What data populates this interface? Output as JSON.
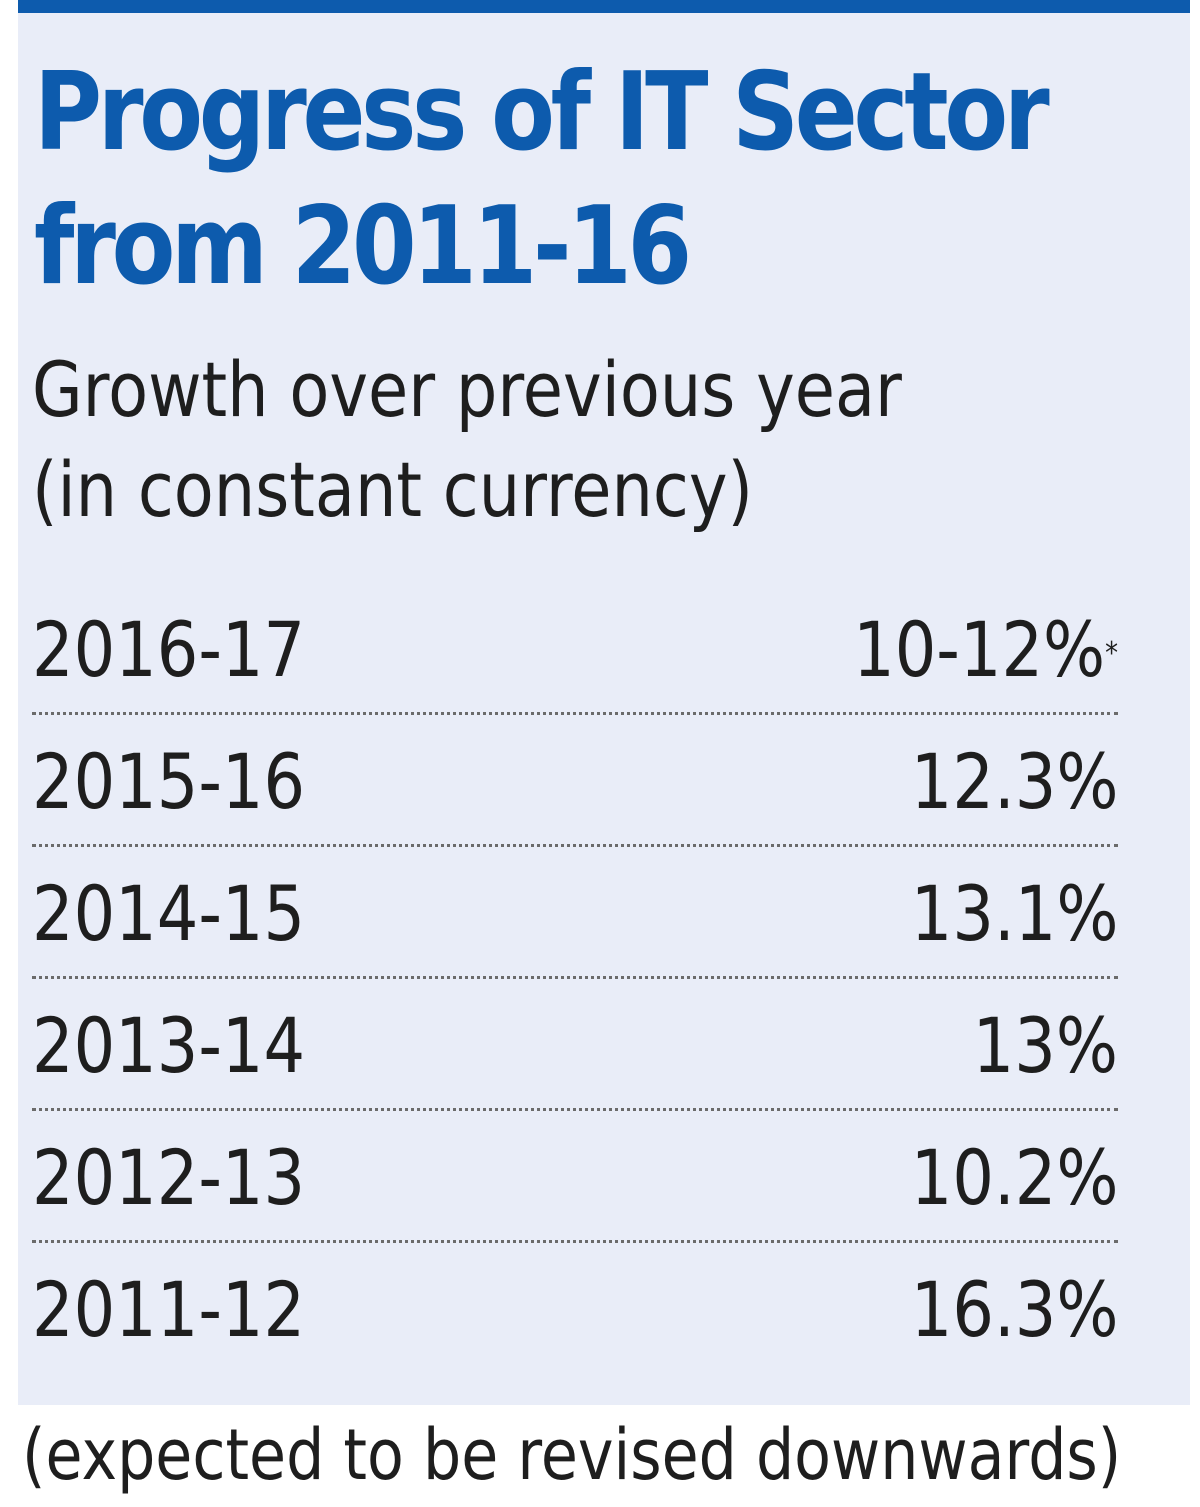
{
  "title": "Progress of IT Sector from 2011-16",
  "subtitle_line1": "Growth over previous year",
  "subtitle_line2": "(in constant currency)",
  "footnote": "(expected to be revised downwards)",
  "colors": {
    "accent": "#0d5bad",
    "panel_bg": "#e9edf8",
    "text": "#1e1e1e"
  },
  "chart_data": {
    "type": "table",
    "title": "Progress of IT Sector from 2011-16",
    "subtitle": "Growth over previous year (in constant currency)",
    "rows": [
      {
        "year": "2016-17",
        "value": "10-12%",
        "marker": "*"
      },
      {
        "year": "2015-16",
        "value": "12.3%",
        "marker": ""
      },
      {
        "year": "2014-15",
        "value": "13.1%",
        "marker": ""
      },
      {
        "year": "2013-14",
        "value": "13%",
        "marker": ""
      },
      {
        "year": "2012-13",
        "value": "10.2%",
        "marker": ""
      },
      {
        "year": "2011-12",
        "value": "16.3%",
        "marker": ""
      }
    ],
    "footnote": "(expected to be revised downwards)"
  }
}
